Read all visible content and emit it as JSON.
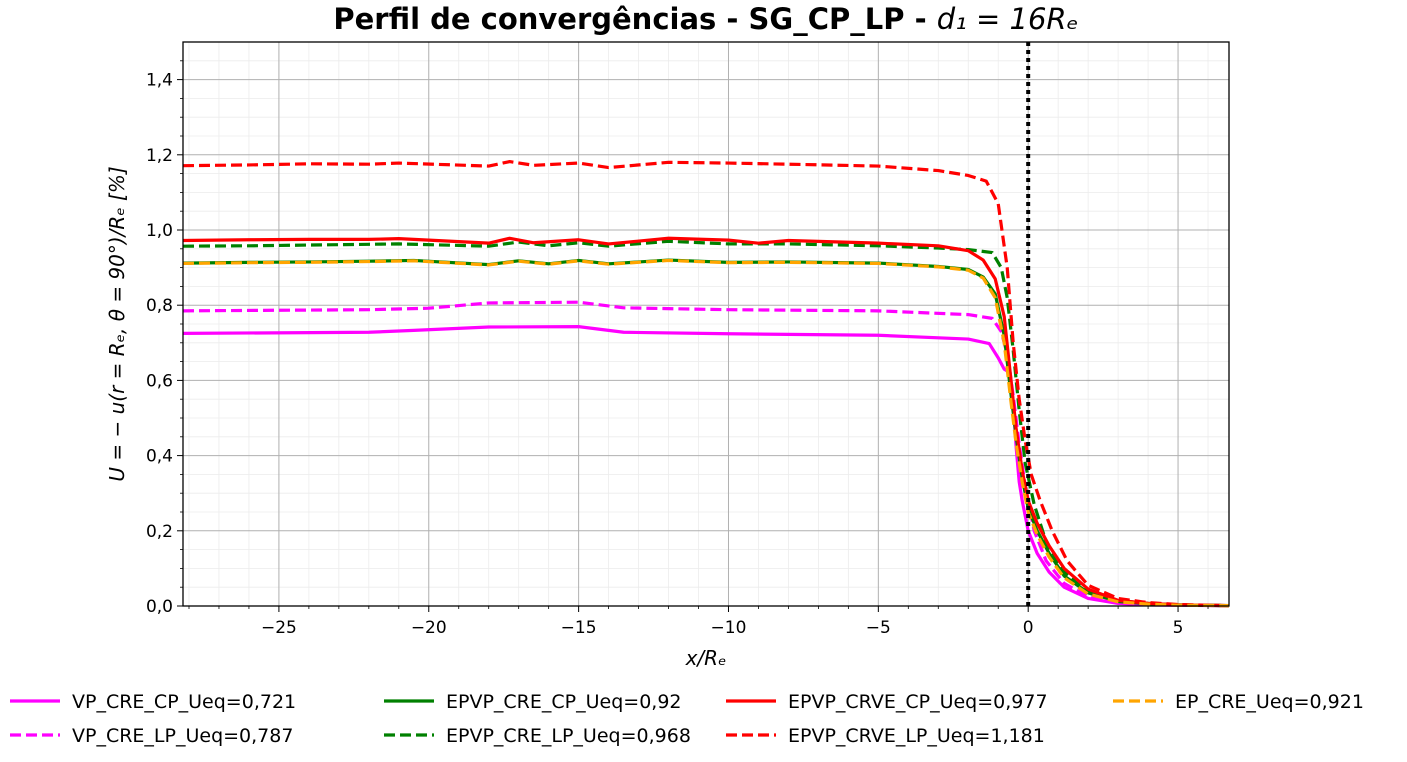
{
  "chart_data": {
    "type": "line",
    "title": "Perfil de convergências - SG_CP_LP - d₁ = 16Rₑ",
    "title_main": "Perfil de convergências - SG_CP_LP - ",
    "title_math": "d₁ = 16Rₑ",
    "xlabel": "x/Rₑ",
    "ylabel": "U = − u(r = Rₑ, θ = 90°)/Rₑ [%]",
    "xlim": [
      -28.2,
      6.7
    ],
    "ylim": [
      0,
      1.5
    ],
    "x_ticks": [
      -25,
      -20,
      -15,
      -10,
      -5,
      0,
      5
    ],
    "x_tick_labels": [
      "−25",
      "−20",
      "−15",
      "−10",
      "−5",
      "0",
      "5"
    ],
    "y_ticks": [
      0,
      0.2,
      0.4,
      0.6,
      0.8,
      1.0,
      1.2,
      1.4
    ],
    "y_tick_labels": [
      "0,0",
      "0,2",
      "0,4",
      "0,6",
      "0,8",
      "1,0",
      "1,2",
      "1,4"
    ],
    "grid": true,
    "minor_grid": true,
    "vertical_reference_line": {
      "x": 0,
      "style": "dotted",
      "color": "#000000"
    },
    "legend_placement": "bottom",
    "series": [
      {
        "name": "VP_CRE_CP_Ueq=0,721",
        "color": "#ff00ff",
        "dash": "solid",
        "x": [
          -28.2,
          -22,
          -20.5,
          -18,
          -15,
          -13.5,
          -10,
          -5,
          -2,
          -1.3,
          -1,
          -0.8,
          -0.6,
          -0.5,
          -0.4,
          -0.3,
          -0.2,
          0,
          0.3,
          0.7,
          1.2,
          2,
          3,
          4,
          5,
          6.7
        ],
        "y": [
          0.725,
          0.728,
          0.733,
          0.742,
          0.743,
          0.728,
          0.724,
          0.72,
          0.71,
          0.698,
          0.66,
          0.63,
          0.62,
          0.54,
          0.42,
          0.33,
          0.28,
          0.2,
          0.14,
          0.09,
          0.05,
          0.02,
          0.007,
          0.003,
          0.002,
          0.001
        ]
      },
      {
        "name": "VP_CRE_LP_Ueq=0,787",
        "color": "#ff00ff",
        "dash": "dashed",
        "x": [
          -28.2,
          -22,
          -20,
          -18,
          -15,
          -13.5,
          -10,
          -5,
          -2,
          -1.2,
          -0.9,
          -0.7,
          -0.5,
          -0.3,
          -0.1,
          0.2,
          0.6,
          1.2,
          2,
          3,
          4,
          5,
          6.7
        ],
        "y": [
          0.785,
          0.788,
          0.792,
          0.806,
          0.808,
          0.793,
          0.788,
          0.785,
          0.775,
          0.765,
          0.73,
          0.67,
          0.56,
          0.43,
          0.32,
          0.2,
          0.12,
          0.06,
          0.025,
          0.009,
          0.004,
          0.002,
          0.001
        ]
      },
      {
        "name": "EPVP_CRE_CP_Ueq=0,92",
        "color": "#008000",
        "dash": "solid",
        "x": [
          -28.2,
          -26,
          -24,
          -22,
          -20.5,
          -18,
          -17,
          -16,
          -15,
          -14,
          -12,
          -10,
          -8,
          -5,
          -3,
          -2,
          -1.5,
          -1.1,
          -0.8,
          -0.6,
          -0.4,
          -0.2,
          0,
          0.3,
          0.7,
          1.2,
          2,
          3,
          4,
          5,
          6.7
        ],
        "y": [
          0.912,
          0.914,
          0.915,
          0.917,
          0.919,
          0.908,
          0.918,
          0.91,
          0.919,
          0.91,
          0.92,
          0.914,
          0.915,
          0.912,
          0.903,
          0.895,
          0.875,
          0.83,
          0.72,
          0.58,
          0.45,
          0.34,
          0.26,
          0.2,
          0.14,
          0.08,
          0.035,
          0.012,
          0.006,
          0.003,
          0.001
        ]
      },
      {
        "name": "EPVP_CRE_LP_Ueq=0,968",
        "color": "#008000",
        "dash": "dashed",
        "x": [
          -28.2,
          -26,
          -24,
          -22,
          -21,
          -18,
          -17,
          -16,
          -15,
          -14,
          -12,
          -10,
          -8,
          -5,
          -3,
          -2,
          -1.2,
          -0.9,
          -0.7,
          -0.5,
          -0.3,
          -0.1,
          0.2,
          0.6,
          1.2,
          2,
          3,
          4,
          5,
          6.7
        ],
        "y": [
          0.957,
          0.958,
          0.96,
          0.962,
          0.963,
          0.957,
          0.968,
          0.958,
          0.966,
          0.957,
          0.97,
          0.963,
          0.963,
          0.958,
          0.952,
          0.948,
          0.94,
          0.9,
          0.82,
          0.68,
          0.52,
          0.38,
          0.27,
          0.17,
          0.09,
          0.04,
          0.014,
          0.007,
          0.003,
          0.001
        ]
      },
      {
        "name": "EPVP_CRVE_CP_Ueq=0,977",
        "color": "#ff0000",
        "dash": "solid",
        "x": [
          -28.2,
          -26,
          -24,
          -22,
          -21,
          -18,
          -17.3,
          -16.5,
          -15,
          -14,
          -12,
          -10,
          -9,
          -8,
          -5,
          -3,
          -2,
          -1.5,
          -1.1,
          -0.8,
          -0.6,
          -0.4,
          -0.2,
          0,
          0.3,
          0.7,
          1.2,
          2,
          3,
          4,
          5,
          6.7
        ],
        "y": [
          0.972,
          0.974,
          0.975,
          0.975,
          0.977,
          0.965,
          0.978,
          0.966,
          0.974,
          0.963,
          0.978,
          0.973,
          0.965,
          0.972,
          0.965,
          0.958,
          0.945,
          0.92,
          0.87,
          0.77,
          0.62,
          0.47,
          0.36,
          0.28,
          0.22,
          0.16,
          0.1,
          0.045,
          0.015,
          0.007,
          0.003,
          0.001
        ]
      },
      {
        "name": "EPVP_CRVE_LP_Ueq=1,181",
        "color": "#ff0000",
        "dash": "dashed",
        "x": [
          -28.2,
          -26,
          -24,
          -22,
          -21,
          -18,
          -17.3,
          -16.5,
          -15,
          -14,
          -12,
          -10,
          -8,
          -5,
          -3,
          -2,
          -1.4,
          -1.0,
          -0.7,
          -0.5,
          -0.3,
          -0.1,
          0.1,
          0.4,
          0.8,
          1.3,
          2,
          3,
          4,
          5,
          6.7
        ],
        "y": [
          1.171,
          1.173,
          1.176,
          1.175,
          1.178,
          1.17,
          1.182,
          1.172,
          1.178,
          1.166,
          1.18,
          1.178,
          1.175,
          1.17,
          1.158,
          1.145,
          1.13,
          1.07,
          0.9,
          0.7,
          0.55,
          0.44,
          0.35,
          0.28,
          0.2,
          0.12,
          0.055,
          0.02,
          0.009,
          0.004,
          0.001
        ]
      },
      {
        "name": "EP_CRE_Ueq=0,921",
        "color": "#ffa500",
        "dash": "dashed",
        "x": [
          -28.2,
          -26,
          -24,
          -22,
          -20.5,
          -18,
          -17,
          -16,
          -15,
          -14,
          -12,
          -10,
          -8,
          -5,
          -3,
          -2,
          -1.5,
          -1.1,
          -0.8,
          -0.6,
          -0.4,
          -0.2,
          0,
          0.3,
          0.7,
          1.2,
          2,
          3,
          4,
          5,
          6.7
        ],
        "y": [
          0.911,
          0.913,
          0.914,
          0.916,
          0.918,
          0.907,
          0.917,
          0.909,
          0.918,
          0.909,
          0.919,
          0.913,
          0.914,
          0.911,
          0.902,
          0.893,
          0.872,
          0.82,
          0.7,
          0.56,
          0.43,
          0.33,
          0.25,
          0.19,
          0.13,
          0.075,
          0.032,
          0.011,
          0.005,
          0.002,
          0.001
        ]
      }
    ]
  }
}
